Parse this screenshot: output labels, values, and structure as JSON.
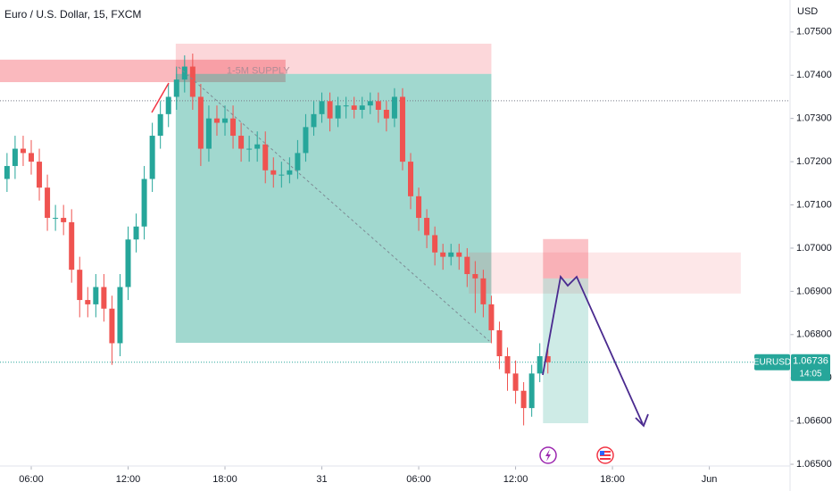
{
  "chart_data": {
    "type": "candlestick",
    "title": "Euro / U.S. Dollar, 15, FXCM",
    "y_axis_label": "USD",
    "up_color": "#26a69a",
    "down_color": "#ef5350",
    "x": [
      1,
      2,
      3,
      4,
      5,
      6,
      7,
      8,
      9,
      10,
      11,
      12,
      13,
      14,
      15,
      16,
      17,
      18,
      19,
      20,
      21,
      22,
      23,
      24,
      25,
      26,
      27,
      28,
      29,
      30,
      31,
      32,
      33,
      34,
      35,
      36,
      37,
      38,
      39,
      40,
      41,
      42,
      43,
      44,
      45,
      46,
      47,
      48,
      49,
      50,
      51,
      52,
      53,
      54,
      55,
      56,
      57,
      58,
      59,
      60,
      61,
      62,
      63,
      64,
      65,
      66,
      67,
      68
    ],
    "open": [
      1.0716,
      1.0719,
      1.0723,
      1.0722,
      1.072,
      1.0714,
      1.0707,
      1.0707,
      1.0706,
      1.0695,
      1.0688,
      1.0687,
      1.0691,
      1.0686,
      1.0678,
      1.0691,
      1.0702,
      1.0705,
      1.0716,
      1.0726,
      1.0731,
      1.0735,
      1.0739,
      1.0742,
      1.0735,
      1.0723,
      1.073,
      1.0729,
      1.073,
      1.0726,
      1.0723,
      1.0723,
      1.0724,
      1.0718,
      1.0717,
      1.0717,
      1.0718,
      1.0722,
      1.0728,
      1.0731,
      1.0734,
      1.073,
      1.0733,
      1.0733,
      1.0732,
      1.0733,
      1.0734,
      1.0732,
      1.073,
      1.0735,
      1.072,
      1.0712,
      1.0707,
      1.0703,
      1.0699,
      1.0698,
      1.0699,
      1.0698,
      1.0694,
      1.0693,
      1.0687,
      1.0681,
      1.0675,
      1.0671,
      1.0667,
      1.0663,
      1.0671,
      1.0675
    ],
    "high": [
      1.0722,
      1.0726,
      1.0726,
      1.0725,
      1.0723,
      1.0717,
      1.071,
      1.071,
      1.0709,
      1.0698,
      1.0691,
      1.0694,
      1.0694,
      1.0689,
      1.0694,
      1.0705,
      1.0708,
      1.0719,
      1.0729,
      1.0734,
      1.0738,
      1.0742,
      1.07446,
      1.0745,
      1.0738,
      1.0733,
      1.0733,
      1.0733,
      1.0733,
      1.0729,
      1.0726,
      1.0727,
      1.0727,
      1.0721,
      1.072,
      1.0721,
      1.0725,
      1.0731,
      1.0734,
      1.0736,
      1.0736,
      1.0735,
      1.0735,
      1.0735,
      1.0735,
      1.0736,
      1.0736,
      1.0734,
      1.0737,
      1.0737,
      1.0722,
      1.0714,
      1.0709,
      1.0705,
      1.0701,
      1.0701,
      1.0701,
      1.07,
      1.0697,
      1.0695,
      1.0689,
      1.0683,
      1.0677,
      1.0674,
      1.0669,
      1.0673,
      1.0678,
      1.0677
    ],
    "low": [
      1.0713,
      1.0716,
      1.0719,
      1.0717,
      1.0711,
      1.0704,
      1.0704,
      1.0703,
      1.0692,
      1.0684,
      1.0684,
      1.0684,
      1.0683,
      1.0673,
      1.0675,
      1.0688,
      1.0699,
      1.0702,
      1.0713,
      1.0723,
      1.0728,
      1.0732,
      1.0736,
      1.0732,
      1.0719,
      1.072,
      1.0726,
      1.0726,
      1.0723,
      1.072,
      1.072,
      1.072,
      1.0715,
      1.0714,
      1.0714,
      1.0715,
      1.0716,
      1.072,
      1.0726,
      1.0729,
      1.0727,
      1.0728,
      1.073,
      1.073,
      1.073,
      1.0731,
      1.0729,
      1.0727,
      1.0728,
      1.0718,
      1.0709,
      1.0704,
      1.07,
      1.0696,
      1.0695,
      1.0696,
      1.0695,
      1.0691,
      1.0685,
      1.0684,
      1.0678,
      1.0672,
      1.0667,
      1.0664,
      1.0659,
      1.0661,
      1.0669,
      1.0671
    ],
    "close": [
      1.0719,
      1.0723,
      1.0722,
      1.072,
      1.0714,
      1.0707,
      1.0707,
      1.0706,
      1.0695,
      1.0688,
      1.0687,
      1.0691,
      1.0686,
      1.0678,
      1.0691,
      1.0702,
      1.0705,
      1.0716,
      1.0726,
      1.0731,
      1.0735,
      1.0739,
      1.0742,
      1.0735,
      1.0723,
      1.073,
      1.0729,
      1.073,
      1.0726,
      1.0723,
      1.0723,
      1.0724,
      1.0718,
      1.0717,
      1.0717,
      1.0718,
      1.0722,
      1.0728,
      1.0731,
      1.0734,
      1.073,
      1.0733,
      1.0733,
      1.0732,
      1.0733,
      1.0734,
      1.0732,
      1.073,
      1.0735,
      1.072,
      1.0712,
      1.0707,
      1.0703,
      1.0699,
      1.0698,
      1.0699,
      1.0698,
      1.0694,
      1.0693,
      1.0687,
      1.0681,
      1.0675,
      1.0671,
      1.0667,
      1.0663,
      1.0671,
      1.0675,
      1.06736
    ],
    "xlim": [
      0.13,
      98
    ],
    "ylim": [
      1.06496,
      1.07574
    ],
    "xticks": [
      {
        "value": 4,
        "label": "06:00"
      },
      {
        "value": 16,
        "label": "12:00"
      },
      {
        "value": 28,
        "label": "18:00"
      },
      {
        "value": 40,
        "label": "31"
      },
      {
        "value": 52,
        "label": "06:00"
      },
      {
        "value": 64,
        "label": "12:00"
      },
      {
        "value": 76,
        "label": "18:00"
      },
      {
        "value": 88,
        "label": "Jun"
      }
    ],
    "yticks": [
      {
        "value": 1.065,
        "label": "1.06500"
      },
      {
        "value": 1.066,
        "label": "1.06600"
      },
      {
        "value": 1.067,
        "label": "1.06700"
      },
      {
        "value": 1.068,
        "label": "1.06800"
      },
      {
        "value": 1.069,
        "label": "1.06900"
      },
      {
        "value": 1.07,
        "label": "1.07000"
      },
      {
        "value": 1.071,
        "label": "1.07100"
      },
      {
        "value": 1.072,
        "label": "1.07200"
      },
      {
        "value": 1.073,
        "label": "1.07300"
      },
      {
        "value": 1.074,
        "label": "1.07400"
      },
      {
        "value": 1.075,
        "label": "1.07500"
      }
    ],
    "zones": [
      {
        "x": [
          0.13,
          35.5
        ],
        "y": [
          1.07384,
          1.07436
        ],
        "color": "rgba(242,54,69,0.35)",
        "label": "1-5M SUPPLY"
      },
      {
        "x": [
          21.9,
          61.0
        ],
        "y": [
          1.07403,
          1.07473
        ],
        "color": "rgba(242,54,69,0.2)"
      },
      {
        "x": [
          21.9,
          61.0
        ],
        "y": [
          1.06781,
          1.07403
        ],
        "color": "rgba(8,153,129,0.38)"
      },
      {
        "x": [
          58.2,
          91.9
        ],
        "y": [
          1.06895,
          1.0699
        ],
        "color": "rgba(242,54,69,0.12)"
      },
      {
        "x": [
          67.4,
          73.0
        ],
        "y": [
          1.0693,
          1.07021
        ],
        "color": "rgba(242,54,69,0.3)"
      },
      {
        "x": [
          67.4,
          73.0
        ],
        "y": [
          1.06595,
          1.0693
        ],
        "color": "rgba(8,153,129,0.2)"
      }
    ],
    "dotted_level": 1.07341,
    "symbol": "EURUSD",
    "last_price": 1.06736,
    "countdown": "14:05"
  }
}
